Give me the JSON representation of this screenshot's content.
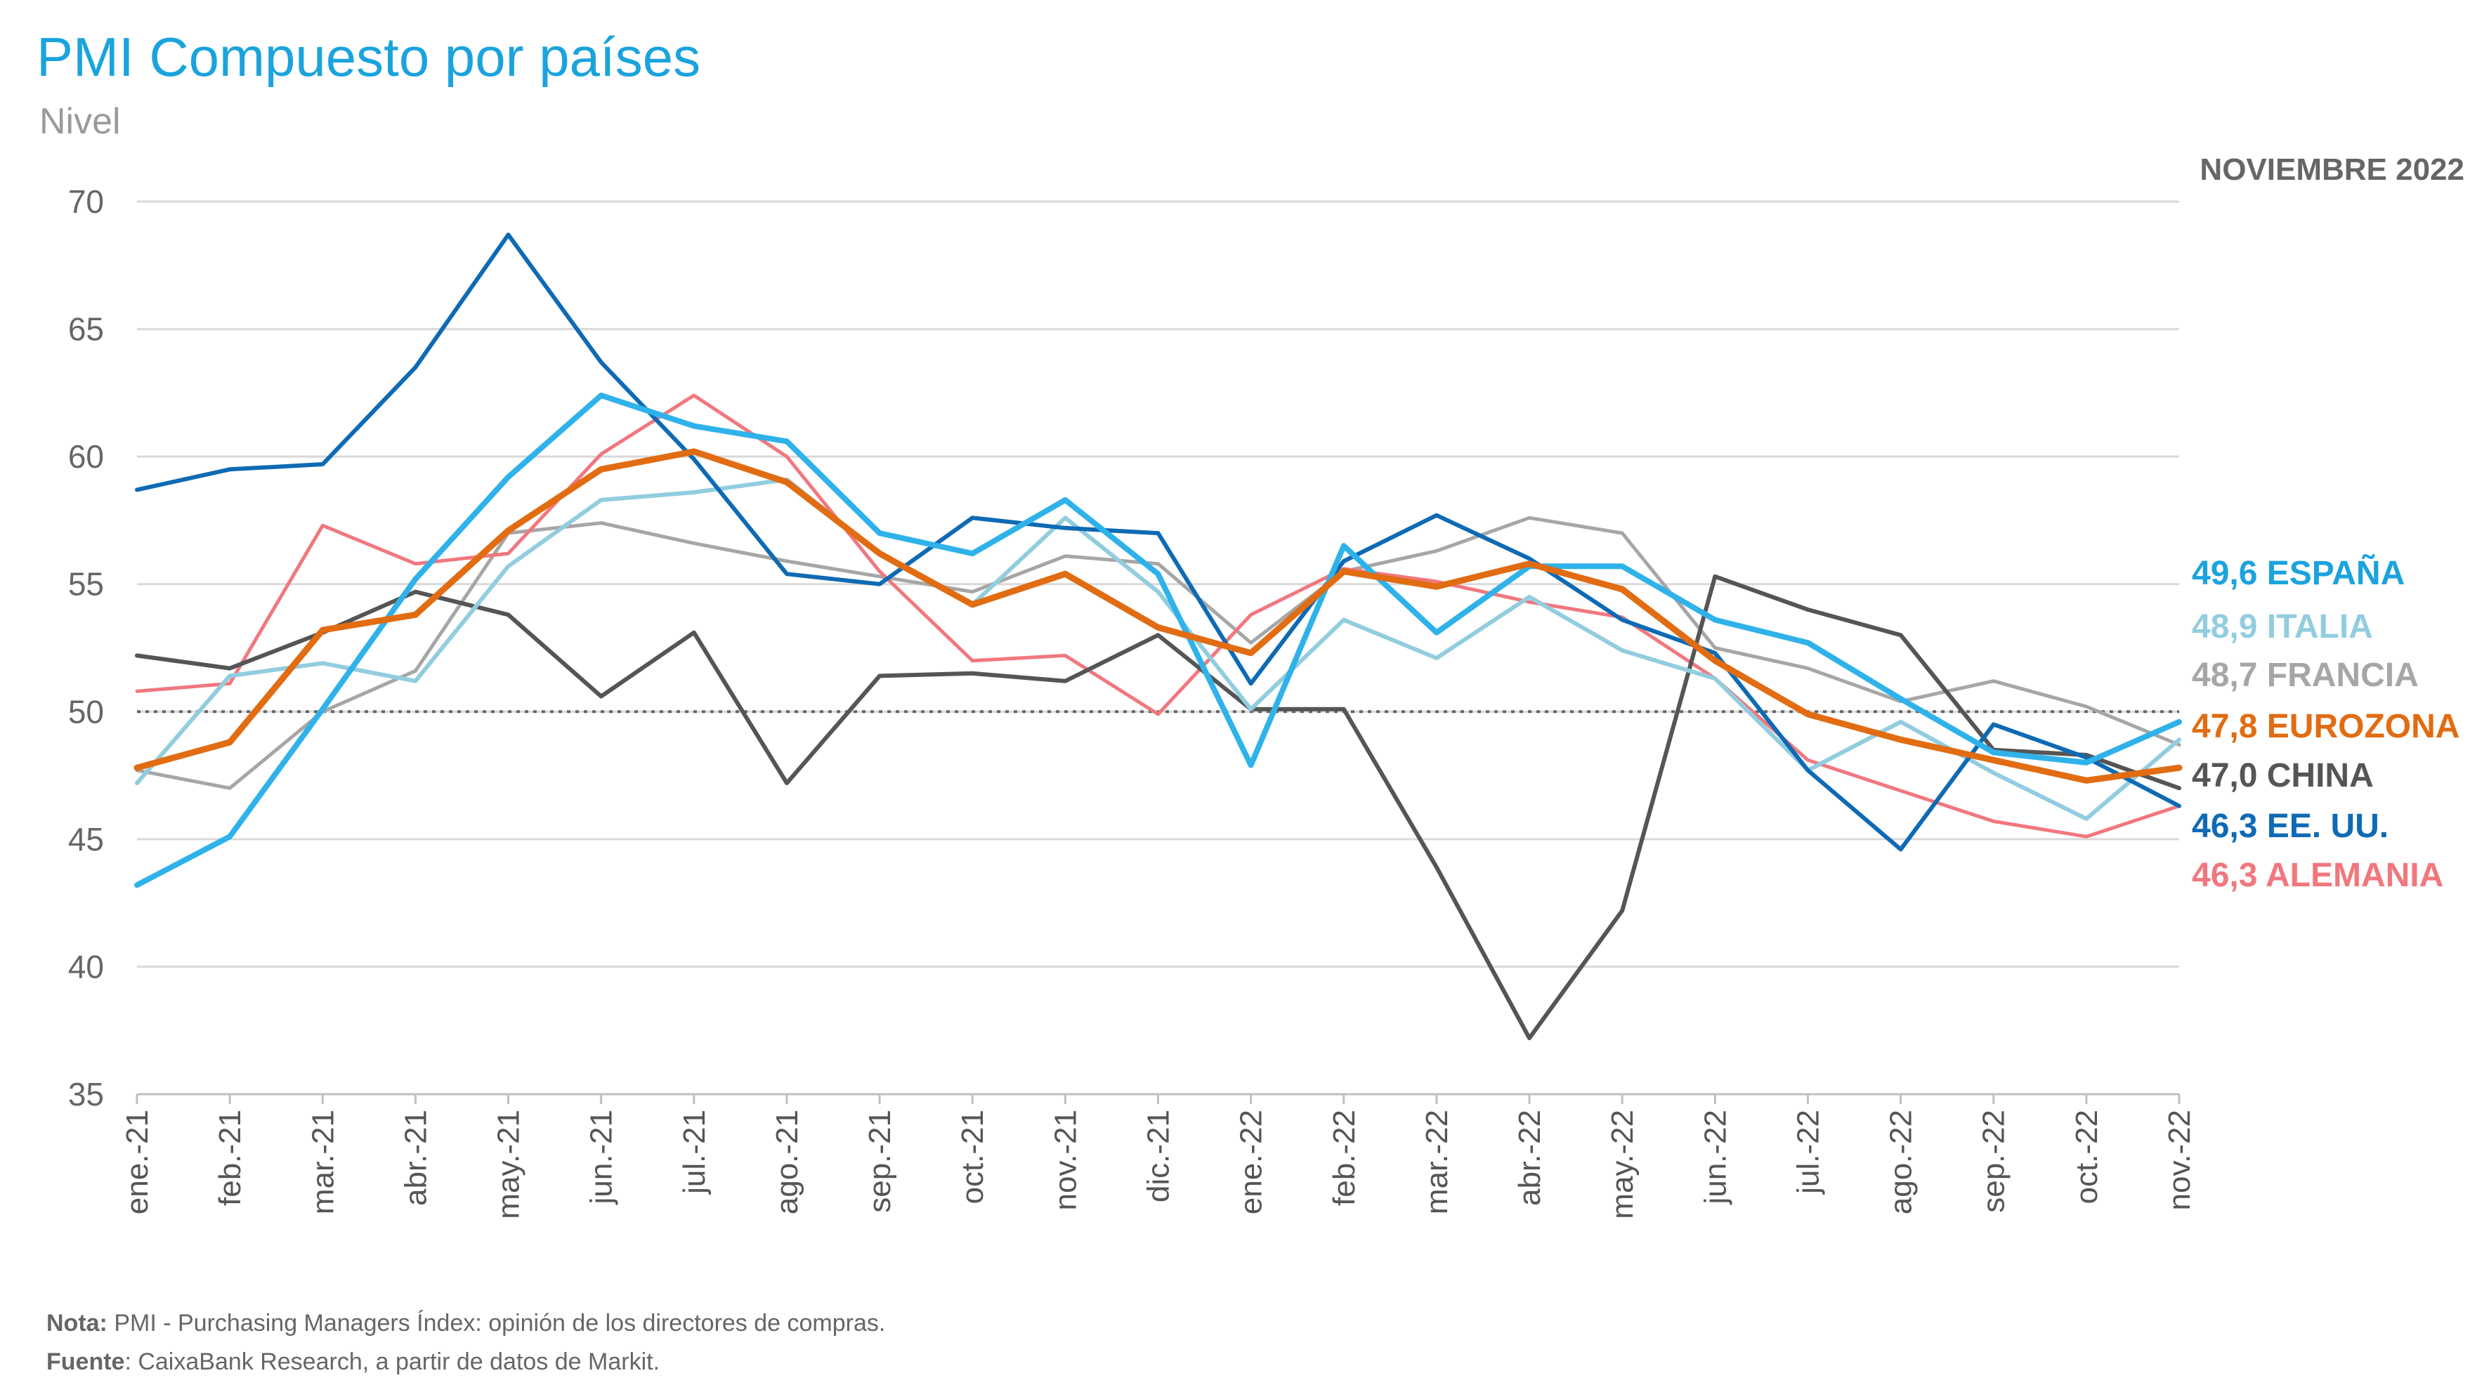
{
  "chart_data": {
    "type": "line",
    "title": "PMI Compuesto por países",
    "subtitle": "Nivel",
    "date_label": "NOVIEMBRE 2022",
    "ylim": [
      35,
      70
    ],
    "yticks": [
      35,
      40,
      45,
      50,
      55,
      60,
      65,
      70
    ],
    "reference_line": 50,
    "grid": "horizontal",
    "categories": [
      "ene.-21",
      "feb.-21",
      "mar.-21",
      "abr.-21",
      "may.-21",
      "jun.-21",
      "jul.-21",
      "ago.-21",
      "sep.-21",
      "oct.-21",
      "nov.-21",
      "dic.-21",
      "ene.-22",
      "feb.-22",
      "mar.-22",
      "abr.-22",
      "may.-22",
      "jun.-22",
      "jul.-22",
      "ago.-22",
      "sep.-22",
      "oct.-22",
      "nov.-22"
    ],
    "series": [
      {
        "name": "FRANCIA",
        "label": "48,7 FRANCIA",
        "color": "#a6a6a6",
        "width": 5,
        "values": [
          47.7,
          47.0,
          50.0,
          51.6,
          57.0,
          57.4,
          56.6,
          55.9,
          55.3,
          54.7,
          56.1,
          55.8,
          52.7,
          55.5,
          56.3,
          57.6,
          57.0,
          52.5,
          51.7,
          50.4,
          51.2,
          50.2,
          48.7
        ]
      },
      {
        "name": "ALEMANIA",
        "label": "46,3 ALEMANIA",
        "color": "#f1777e",
        "width": 5,
        "values": [
          50.8,
          51.1,
          57.3,
          55.8,
          56.2,
          60.1,
          62.4,
          60.0,
          55.5,
          52.0,
          52.2,
          49.9,
          53.8,
          55.6,
          55.1,
          54.3,
          53.7,
          51.3,
          48.1,
          46.9,
          45.7,
          45.1,
          46.3
        ]
      },
      {
        "name": "CHINA",
        "label": "47,0 CHINA",
        "color": "#555555",
        "width": 6,
        "values": [
          52.2,
          51.7,
          53.1,
          54.7,
          53.8,
          50.6,
          53.1,
          47.2,
          51.4,
          51.5,
          51.2,
          53.0,
          50.1,
          50.1,
          43.9,
          37.2,
          42.2,
          55.3,
          54.0,
          53.0,
          48.5,
          48.3,
          47.0
        ]
      },
      {
        "name": "ITALIA",
        "label": "48,9 ITALIA",
        "color": "#92cddf",
        "width": 6,
        "values": [
          47.2,
          51.4,
          51.9,
          51.2,
          55.7,
          58.3,
          58.6,
          59.1,
          56.2,
          54.2,
          57.6,
          54.7,
          50.1,
          53.6,
          52.1,
          54.5,
          52.4,
          51.3,
          47.7,
          49.6,
          47.6,
          45.8,
          48.9
        ]
      },
      {
        "name": "EE. UU.",
        "label": "46,3 EE. UU.",
        "color": "#0e6ab4",
        "width": 6,
        "values": [
          58.7,
          59.5,
          59.7,
          63.5,
          68.7,
          63.7,
          59.9,
          55.4,
          55.0,
          57.6,
          57.2,
          57.0,
          51.1,
          55.9,
          57.7,
          56.0,
          53.6,
          52.3,
          47.7,
          44.6,
          49.5,
          48.2,
          46.3
        ]
      },
      {
        "name": "ESPAÑA",
        "label": "49,6 ESPAÑA",
        "color": "#2fb2ea",
        "width": 8,
        "values": [
          43.2,
          45.1,
          50.1,
          55.2,
          59.2,
          62.4,
          61.2,
          60.6,
          57.0,
          56.2,
          58.3,
          55.4,
          47.9,
          56.5,
          53.1,
          55.7,
          55.7,
          53.6,
          52.7,
          50.5,
          48.4,
          48.0,
          49.6
        ]
      },
      {
        "name": "EUROZONA",
        "label": "47,8 EUROZONA",
        "color": "#e16c12",
        "width": 9,
        "values": [
          47.8,
          48.8,
          53.2,
          53.8,
          57.1,
          59.5,
          60.2,
          59.0,
          56.2,
          54.2,
          55.4,
          53.3,
          52.3,
          55.5,
          54.9,
          55.8,
          54.8,
          52.0,
          49.9,
          48.9,
          48.1,
          47.3,
          47.8
        ]
      }
    ],
    "end_labels": [
      {
        "text": "49,6 ESPAÑA",
        "color": "#1aa3dd"
      },
      {
        "text": "48,9 ITALIA",
        "color": "#92cddf"
      },
      {
        "text": "48,7 FRANCIA",
        "color": "#a6a6a6"
      },
      {
        "text": "47,8 EUROZONA",
        "color": "#e16c12"
      },
      {
        "text": "47,0 CHINA",
        "color": "#555555"
      },
      {
        "text": "46,3 EE. UU.",
        "color": "#0e6ab4"
      },
      {
        "text": "46,3 ALEMANIA",
        "color": "#f1777e"
      }
    ]
  },
  "notes": {
    "note_label": "Nota:",
    "note_text": " PMI - Purchasing Managers Índex: opinión de los directores de compras.",
    "source_label": "Fuente",
    "source_text": ": CaixaBank Research, a partir de datos de Markit."
  }
}
